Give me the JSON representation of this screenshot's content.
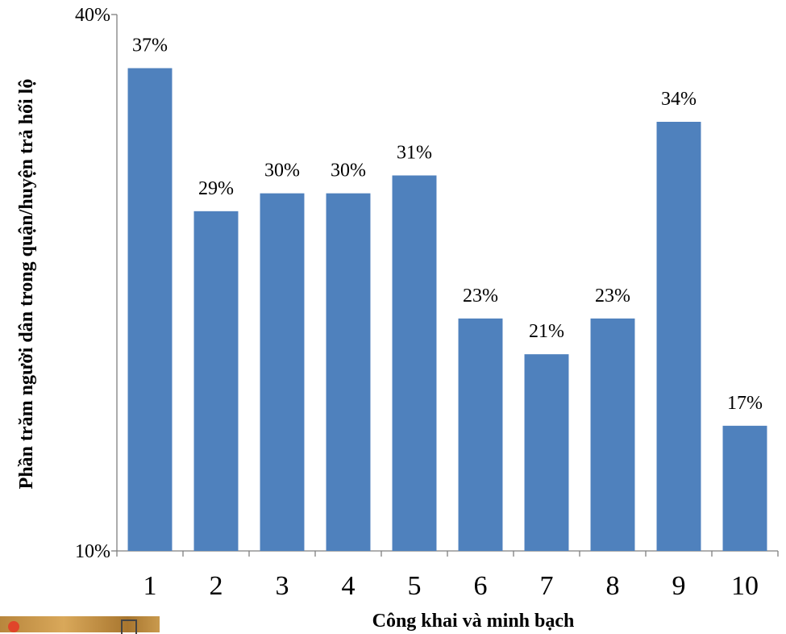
{
  "chart_data": {
    "type": "bar",
    "categories": [
      "1",
      "2",
      "3",
      "4",
      "5",
      "6",
      "7",
      "8",
      "9",
      "10"
    ],
    "values": [
      37,
      29,
      30,
      30,
      31,
      23,
      21,
      23,
      34,
      17
    ],
    "data_labels": [
      "37%",
      "29%",
      "30%",
      "30%",
      "31%",
      "23%",
      "21%",
      "23%",
      "34%",
      "17%"
    ],
    "xlabel": "Công khai và minh bạch",
    "ylabel": "Phần trăm người dân trong quận/huyện trả hối lộ",
    "ylim": [
      10,
      40
    ],
    "y_ticks": [
      {
        "value": 10,
        "label": "10%"
      },
      {
        "value": 40,
        "label": "40%"
      }
    ],
    "grid": false,
    "colors": {
      "bar": "#4f81bd",
      "axis": "#7f7f7f"
    }
  }
}
